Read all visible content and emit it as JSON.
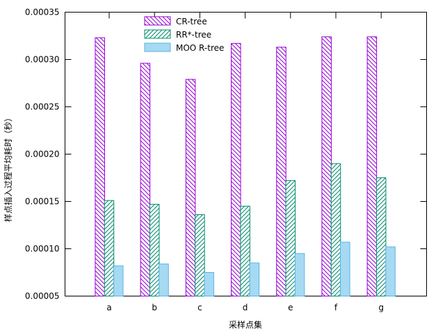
{
  "chart_data": {
    "type": "bar",
    "categories": [
      "a",
      "b",
      "c",
      "d",
      "e",
      "f",
      "g"
    ],
    "series": [
      {
        "name": "CR-tree",
        "values": [
          0.000323,
          0.000296,
          0.000279,
          0.000317,
          0.000313,
          0.000324,
          0.000324
        ],
        "color": "#9400d3",
        "fill": "hatch-diag-down"
      },
      {
        "name": "RR*-tree",
        "values": [
          0.000151,
          0.000147,
          0.000136,
          0.000145,
          0.000172,
          0.00019,
          0.000175
        ],
        "color": "#008b6b",
        "fill": "hatch-diag-up"
      },
      {
        "name": "MOO R-tree",
        "values": [
          8.2e-05,
          8.4e-05,
          7.5e-05,
          8.5e-05,
          9.5e-05,
          0.000107,
          0.000102
        ],
        "color": "#56b4e9",
        "fill": "solid"
      }
    ],
    "xlabel": "采样点集",
    "ylabel": "样点插入过程平均耗时（秒）",
    "ylim": [
      5e-05,
      0.00035
    ],
    "yticks": [
      "0.00005",
      "0.00010",
      "0.00015",
      "0.00020",
      "0.00025",
      "0.00030",
      "0.00035"
    ],
    "grid": false,
    "legend_position": "top-left"
  }
}
